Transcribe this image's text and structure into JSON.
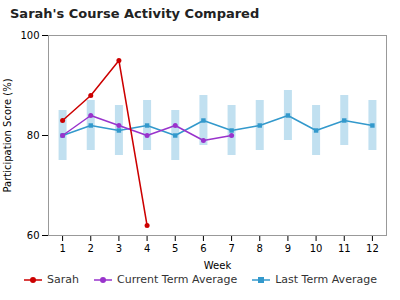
{
  "chart_data": {
    "type": "line",
    "title": "Sarah's Course Activity Compared",
    "xlabel": "Week",
    "ylabel": "Participation Score (%)",
    "x": [
      1,
      2,
      3,
      4,
      5,
      6,
      7,
      8,
      9,
      10,
      11,
      12
    ],
    "xlim": [
      0.5,
      12.5
    ],
    "xticks": [
      1,
      2,
      3,
      4,
      5,
      6,
      7,
      8,
      9,
      10,
      11,
      12
    ],
    "ylim": [
      60,
      100
    ],
    "yticks": [
      60,
      80,
      100
    ],
    "grid": false,
    "legend": "bottom",
    "series": [
      {
        "name": "Sarah",
        "color": "#cc0000",
        "marker": "circle",
        "values": [
          83,
          88,
          95,
          62,
          null,
          null,
          null,
          null,
          null,
          null,
          null,
          null
        ]
      },
      {
        "name": "Current Term Average",
        "color": "#9933cc",
        "marker": "circle",
        "values": [
          80,
          84,
          82,
          80,
          82,
          79,
          80,
          null,
          null,
          null,
          null,
          null
        ]
      },
      {
        "name": "Last Term Average",
        "color": "#3399cc",
        "marker": "square",
        "values": [
          80,
          82,
          81,
          82,
          80,
          83,
          81,
          82,
          84,
          81,
          83,
          82
        ],
        "error": [
          5,
          5,
          5,
          5,
          5,
          5,
          5,
          5,
          5,
          5,
          5,
          5
        ]
      }
    ]
  }
}
